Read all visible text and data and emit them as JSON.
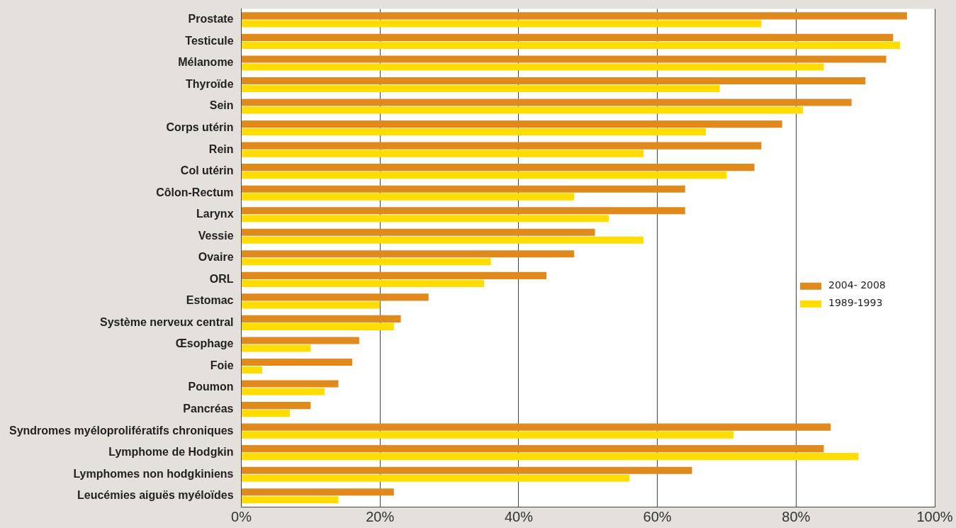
{
  "chart_data": {
    "type": "bar",
    "orientation": "horizontal",
    "categories": [
      "Prostate",
      "Testicule",
      "Mélanome",
      "Thyroïde",
      "Sein",
      "Corps utérin",
      "Rein",
      "Col utérin",
      "Côlon-Rectum",
      "Larynx",
      "Vessie",
      "Ovaire",
      "ORL",
      "Estomac",
      "Système nerveux central",
      "Œsophage",
      "Foie",
      "Poumon",
      "Pancréas",
      "Syndromes myéloprolifératifs chroniques",
      "Lymphome de Hodgkin",
      "Lymphomes non hodgkiniens",
      "Leucémies aiguës myéloïdes"
    ],
    "series": [
      {
        "name": "2004- 2008",
        "color": "#e08a1e",
        "values": [
          96,
          94,
          93,
          90,
          88,
          78,
          75,
          74,
          64,
          64,
          51,
          48,
          44,
          27,
          23,
          17,
          16,
          14,
          10,
          85,
          84,
          65,
          22
        ]
      },
      {
        "name": "1989-1993",
        "color": "#ffdd00",
        "values": [
          75,
          95,
          84,
          69,
          81,
          67,
          58,
          70,
          48,
          53,
          58,
          36,
          35,
          20,
          22,
          10,
          3,
          12,
          7,
          71,
          89,
          56,
          14
        ]
      }
    ],
    "xlim": [
      0,
      100
    ],
    "xticks": [
      {
        "value": 0,
        "label": "0%"
      },
      {
        "value": 20,
        "label": "20%"
      },
      {
        "value": 40,
        "label": "40%"
      },
      {
        "value": 60,
        "label": "60%"
      },
      {
        "value": 80,
        "label": "80%"
      },
      {
        "value": 100,
        "label": "100%"
      }
    ],
    "grid": "x",
    "legend": "right"
  }
}
